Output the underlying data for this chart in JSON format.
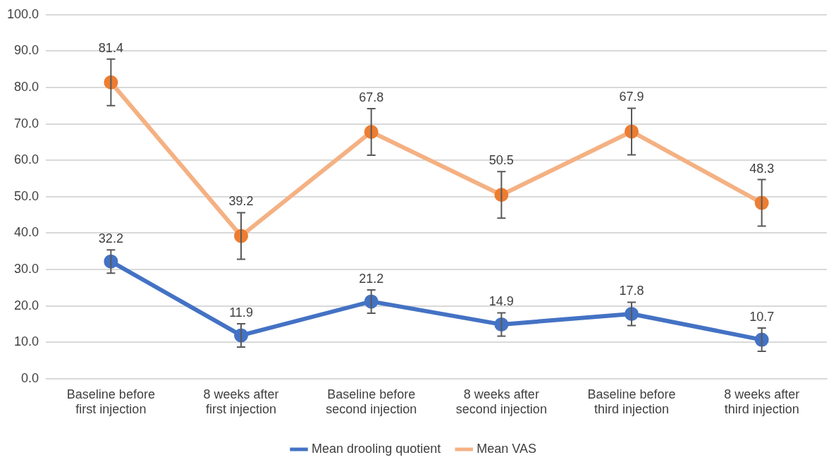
{
  "chart_data": {
    "type": "line",
    "categories": [
      "Baseline before first injection",
      "8 weeks after first injection",
      "Baseline before second injection",
      "8 weeks after second injection",
      "Baseline before third injection",
      "8 weeks after third injection"
    ],
    "series": [
      {
        "name": "Mean drooling quotient",
        "color": "#4472c4",
        "values": [
          32.2,
          11.9,
          21.2,
          14.9,
          17.8,
          10.7
        ],
        "errors": [
          3.2,
          3.2,
          3.2,
          3.2,
          3.2,
          3.2
        ]
      },
      {
        "name": "Mean VAS",
        "color": "#f4b183",
        "colors": [
          "#ed7d31",
          "#ed7d31",
          "#ed7d31",
          "#ed7d31",
          "#ed7d31",
          "#ed7d31"
        ],
        "values": [
          81.4,
          39.2,
          67.8,
          50.5,
          67.9,
          48.3
        ],
        "errors": [
          6.4,
          6.4,
          6.4,
          6.4,
          6.4,
          6.4
        ]
      }
    ],
    "ylim": [
      0,
      100
    ],
    "yticks": [
      {
        "value": 0,
        "label": "0.0"
      },
      {
        "value": 10,
        "label": "10.0"
      },
      {
        "value": 20,
        "label": "20.0"
      },
      {
        "value": 30,
        "label": "30.0"
      },
      {
        "value": 40,
        "label": "40.0"
      },
      {
        "value": 50,
        "label": "50.0"
      },
      {
        "value": 60,
        "label": "60.0"
      },
      {
        "value": 70,
        "label": "70.0"
      },
      {
        "value": 80,
        "label": "80.0"
      },
      {
        "value": 90,
        "label": "90.0"
      },
      {
        "value": 100,
        "label": "100.0"
      }
    ],
    "grid": "y",
    "legend": "bottom",
    "marker": "circle",
    "line_style": "solid",
    "data_labels": true
  }
}
